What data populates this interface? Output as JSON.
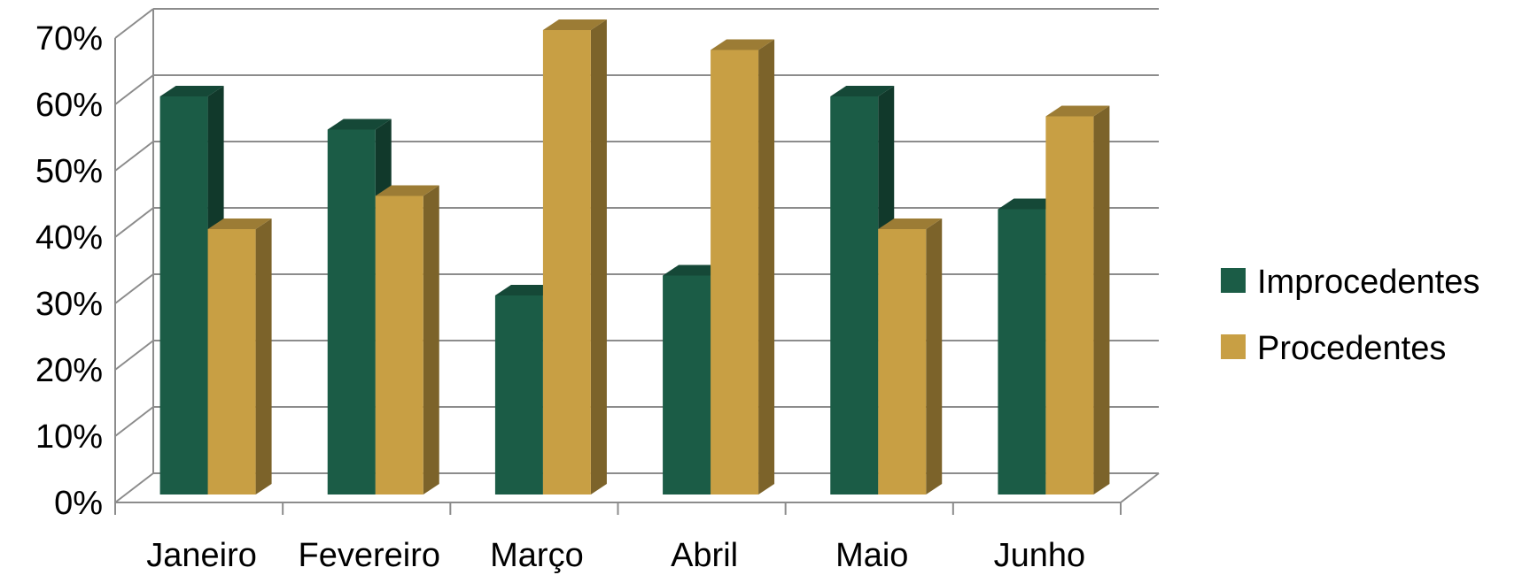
{
  "chart_data": {
    "type": "bar",
    "title": "",
    "xlabel": "",
    "ylabel": "",
    "categories": [
      "Janeiro",
      "Fevereiro",
      "Março",
      "Abril",
      "Maio",
      "Junho"
    ],
    "series": [
      {
        "name": "Improcedentes",
        "color": "#1b5c46",
        "values": [
          60,
          55,
          30,
          33,
          60,
          43
        ]
      },
      {
        "name": "Procedentes",
        "color": "#c89f44",
        "values": [
          40,
          45,
          70,
          67,
          40,
          57
        ]
      }
    ],
    "ylim": [
      0,
      70
    ],
    "ytick_values": [
      0,
      10,
      20,
      30,
      40,
      50,
      60,
      70
    ],
    "ytick_labels": [
      "0%",
      "10%",
      "20%",
      "30%",
      "40%",
      "50%",
      "60%",
      "70%"
    ],
    "grid": true,
    "legend_position": "right",
    "style": "3d-clustered-column"
  }
}
